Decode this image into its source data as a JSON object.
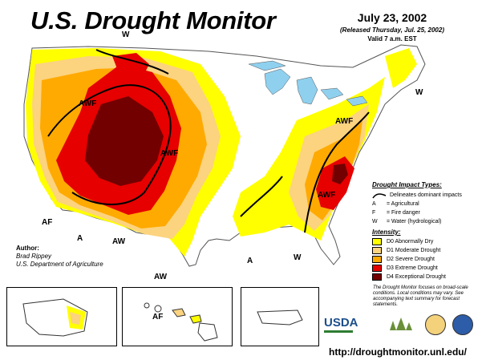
{
  "header": {
    "title": "U.S. Drought Monitor",
    "date": "July 23, 2002",
    "released": "(Released Thursday, Jul. 25, 2002)",
    "valid": "Valid 7 a.m. EST"
  },
  "map_labels": {
    "w_nw": "W",
    "awf_north": "AWF",
    "awf_center": "AWF",
    "awf_east": "AWF",
    "awf_se": "AWF",
    "w_ne": "W",
    "af_sw": "AF",
    "a_south": "A",
    "aw_texas": "AW",
    "aw_coast": "AW",
    "a_gulf": "A",
    "w_gulf": "W",
    "af_hawaii": "AF"
  },
  "author": {
    "heading": "Author:",
    "name": "Brad Rippey",
    "org": "U.S. Department of Agriculture"
  },
  "legend": {
    "impact_heading": "Drought Impact Types:",
    "impact_line": "Delineates dominant impacts",
    "impacts": [
      {
        "code": "A",
        "text": "= Agricultural"
      },
      {
        "code": "F",
        "text": "= Fire danger"
      },
      {
        "code": "W",
        "text": "= Water (hydrological)"
      }
    ],
    "intensity_heading": "Intensity:",
    "intensity": [
      {
        "label": "D0 Abnormally Dry",
        "color": "#ffff00"
      },
      {
        "label": "D1 Moderate Drought",
        "color": "#fcd37f"
      },
      {
        "label": "D2 Severe Drought",
        "color": "#ffaa00"
      },
      {
        "label": "D3 Extreme Drought",
        "color": "#e60000"
      },
      {
        "label": "D4 Exceptional Drought",
        "color": "#730000"
      }
    ]
  },
  "note": "The Drought Monitor focuses on broad-scale conditions. Local conditions may vary. See accompanying text summary for forecast statements.",
  "logos": {
    "usda": "USDA"
  },
  "url": "http://droughtmonitor.unl.edu/",
  "colors": {
    "water": "#8fd0ef",
    "d0": "#ffff00",
    "d1": "#fcd37f",
    "d2": "#ffaa00",
    "d3": "#e60000",
    "d4": "#730000"
  }
}
